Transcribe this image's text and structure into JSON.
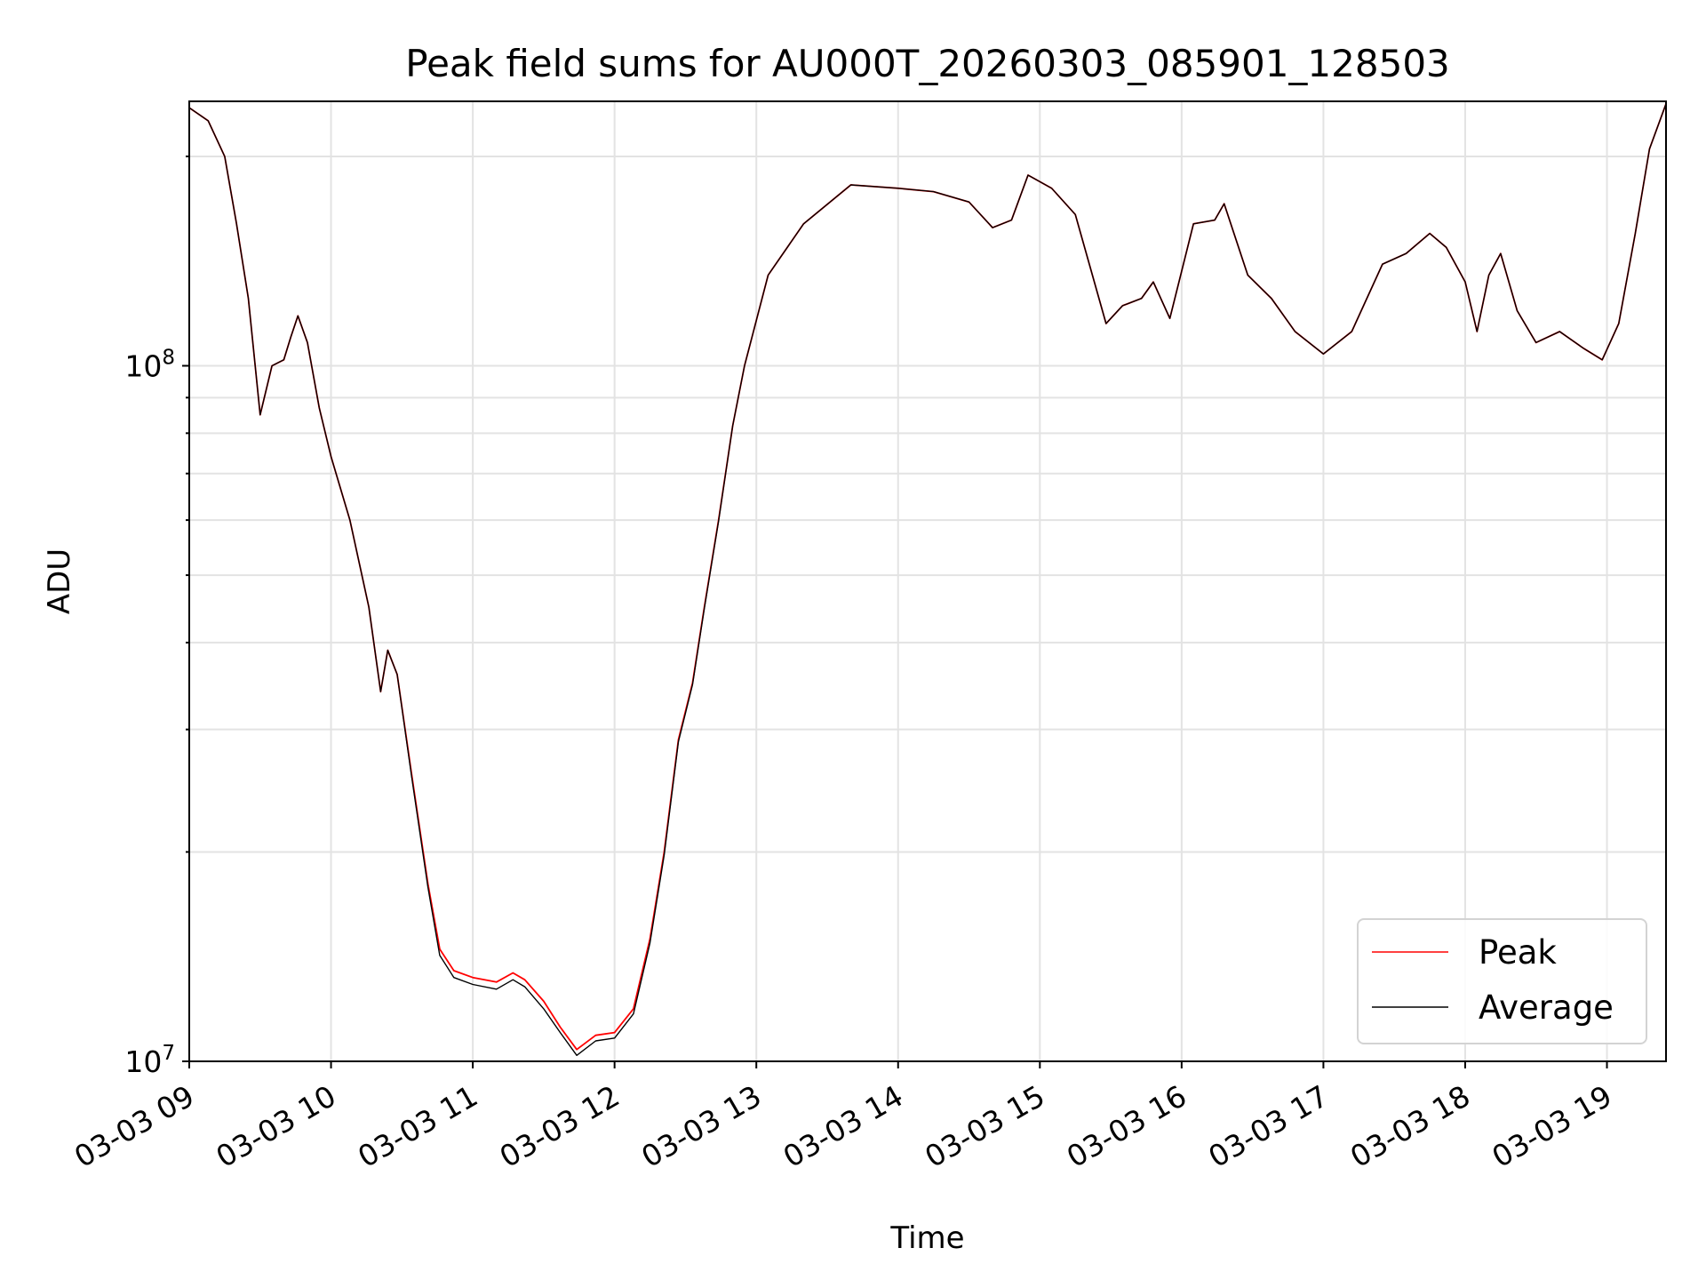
{
  "chart_data": {
    "type": "line",
    "title": "Peak field sums for AU000T_20260303_085901_128503",
    "xlabel": "Time",
    "ylabel": "ADU",
    "yscale": "log",
    "ylim": [
      10000000,
      240000000
    ],
    "xlim": [
      "2026-03-03 09:00",
      "2026-03-03 19:25"
    ],
    "grid": true,
    "legend": {
      "placement": "bottom-right"
    },
    "x_ticks": [
      {
        "time": "2026-03-03 09:00",
        "label": "03-03 09"
      },
      {
        "time": "2026-03-03 10:00",
        "label": "03-03 10"
      },
      {
        "time": "2026-03-03 11:00",
        "label": "03-03 11"
      },
      {
        "time": "2026-03-03 12:00",
        "label": "03-03 12"
      },
      {
        "time": "2026-03-03 13:00",
        "label": "03-03 13"
      },
      {
        "time": "2026-03-03 14:00",
        "label": "03-03 14"
      },
      {
        "time": "2026-03-03 15:00",
        "label": "03-03 15"
      },
      {
        "time": "2026-03-03 16:00",
        "label": "03-03 16"
      },
      {
        "time": "2026-03-03 17:00",
        "label": "03-03 17"
      },
      {
        "time": "2026-03-03 18:00",
        "label": "03-03 18"
      },
      {
        "time": "2026-03-03 19:00",
        "label": "03-03 19"
      }
    ],
    "y_major_ticks": [
      {
        "value": 10000000,
        "base": "10",
        "exp": "7"
      },
      {
        "value": 100000000,
        "base": "10",
        "exp": "8"
      }
    ],
    "y_minor_ticks": [
      20000000,
      30000000,
      40000000,
      50000000,
      60000000,
      70000000,
      80000000,
      90000000,
      200000000
    ],
    "series": [
      {
        "name": "Peak",
        "color": "#ff0000",
        "points": [
          [
            "2026-03-03 09:00",
            235000000
          ],
          [
            "2026-03-03 09:08",
            225000000
          ],
          [
            "2026-03-03 09:15",
            200000000
          ],
          [
            "2026-03-03 09:20",
            160000000
          ],
          [
            "2026-03-03 09:25",
            125000000
          ],
          [
            "2026-03-03 09:30",
            85000000
          ],
          [
            "2026-03-03 09:35",
            100000000
          ],
          [
            "2026-03-03 09:40",
            102000000
          ],
          [
            "2026-03-03 09:43",
            110000000
          ],
          [
            "2026-03-03 09:46",
            118000000
          ],
          [
            "2026-03-03 09:50",
            108000000
          ],
          [
            "2026-03-03 09:55",
            87000000
          ],
          [
            "2026-03-03 10:00",
            74000000
          ],
          [
            "2026-03-03 10:08",
            60000000
          ],
          [
            "2026-03-03 10:16",
            45000000
          ],
          [
            "2026-03-03 10:21",
            34000000
          ],
          [
            "2026-03-03 10:24",
            39000000
          ],
          [
            "2026-03-03 10:28",
            36000000
          ],
          [
            "2026-03-03 10:34",
            26000000
          ],
          [
            "2026-03-03 10:41",
            18000000
          ],
          [
            "2026-03-03 10:46",
            14500000
          ],
          [
            "2026-03-03 10:52",
            13500000
          ],
          [
            "2026-03-03 11:00",
            13200000
          ],
          [
            "2026-03-03 11:10",
            13000000
          ],
          [
            "2026-03-03 11:17",
            13400000
          ],
          [
            "2026-03-03 11:22",
            13100000
          ],
          [
            "2026-03-03 11:30",
            12200000
          ],
          [
            "2026-03-03 11:37",
            11200000
          ],
          [
            "2026-03-03 11:44",
            10400000
          ],
          [
            "2026-03-03 11:52",
            10900000
          ],
          [
            "2026-03-03 12:00",
            11000000
          ],
          [
            "2026-03-03 12:08",
            11900000
          ],
          [
            "2026-03-03 12:15",
            15000000
          ],
          [
            "2026-03-03 12:21",
            20000000
          ],
          [
            "2026-03-03 12:27",
            29000000
          ],
          [
            "2026-03-03 12:33",
            35000000
          ],
          [
            "2026-03-03 12:38",
            45000000
          ],
          [
            "2026-03-03 12:44",
            60000000
          ],
          [
            "2026-03-03 12:50",
            82000000
          ],
          [
            "2026-03-03 12:55",
            100000000
          ],
          [
            "2026-03-03 13:05",
            135000000
          ],
          [
            "2026-03-03 13:20",
            160000000
          ],
          [
            "2026-03-03 13:40",
            182000000
          ],
          [
            "2026-03-03 14:00",
            180000000
          ],
          [
            "2026-03-03 14:15",
            178000000
          ],
          [
            "2026-03-03 14:30",
            172000000
          ],
          [
            "2026-03-03 14:40",
            158000000
          ],
          [
            "2026-03-03 14:48",
            162000000
          ],
          [
            "2026-03-03 14:55",
            188000000
          ],
          [
            "2026-03-03 15:05",
            180000000
          ],
          [
            "2026-03-03 15:15",
            165000000
          ],
          [
            "2026-03-03 15:28",
            115000000
          ],
          [
            "2026-03-03 15:35",
            122000000
          ],
          [
            "2026-03-03 15:43",
            125000000
          ],
          [
            "2026-03-03 15:48",
            132000000
          ],
          [
            "2026-03-03 15:55",
            117000000
          ],
          [
            "2026-03-03 16:05",
            160000000
          ],
          [
            "2026-03-03 16:14",
            162000000
          ],
          [
            "2026-03-03 16:18",
            171000000
          ],
          [
            "2026-03-03 16:28",
            135000000
          ],
          [
            "2026-03-03 16:38",
            125000000
          ],
          [
            "2026-03-03 16:48",
            112000000
          ],
          [
            "2026-03-03 17:00",
            104000000
          ],
          [
            "2026-03-03 17:12",
            112000000
          ],
          [
            "2026-03-03 17:25",
            140000000
          ],
          [
            "2026-03-03 17:35",
            145000000
          ],
          [
            "2026-03-03 17:45",
            155000000
          ],
          [
            "2026-03-03 17:52",
            148000000
          ],
          [
            "2026-03-03 18:00",
            132000000
          ],
          [
            "2026-03-03 18:05",
            112000000
          ],
          [
            "2026-03-03 18:10",
            135000000
          ],
          [
            "2026-03-03 18:15",
            145000000
          ],
          [
            "2026-03-03 18:22",
            120000000
          ],
          [
            "2026-03-03 18:30",
            108000000
          ],
          [
            "2026-03-03 18:40",
            112000000
          ],
          [
            "2026-03-03 18:50",
            106000000
          ],
          [
            "2026-03-03 18:58",
            102000000
          ],
          [
            "2026-03-03 19:05",
            115000000
          ],
          [
            "2026-03-03 19:12",
            155000000
          ],
          [
            "2026-03-03 19:18",
            205000000
          ],
          [
            "2026-03-03 19:25",
            238000000
          ]
        ]
      },
      {
        "name": "Average",
        "color": "#000000",
        "points": [
          [
            "2026-03-03 09:00",
            235000000
          ],
          [
            "2026-03-03 09:08",
            225000000
          ],
          [
            "2026-03-03 09:15",
            200000000
          ],
          [
            "2026-03-03 09:20",
            160000000
          ],
          [
            "2026-03-03 09:25",
            125000000
          ],
          [
            "2026-03-03 09:30",
            85000000
          ],
          [
            "2026-03-03 09:35",
            100000000
          ],
          [
            "2026-03-03 09:40",
            102000000
          ],
          [
            "2026-03-03 09:43",
            110000000
          ],
          [
            "2026-03-03 09:46",
            118000000
          ],
          [
            "2026-03-03 09:50",
            108000000
          ],
          [
            "2026-03-03 09:55",
            87000000
          ],
          [
            "2026-03-03 10:00",
            74000000
          ],
          [
            "2026-03-03 10:08",
            60000000
          ],
          [
            "2026-03-03 10:16",
            45000000
          ],
          [
            "2026-03-03 10:21",
            34000000
          ],
          [
            "2026-03-03 10:24",
            39000000
          ],
          [
            "2026-03-03 10:28",
            36000000
          ],
          [
            "2026-03-03 10:34",
            25800000
          ],
          [
            "2026-03-03 10:41",
            17800000
          ],
          [
            "2026-03-03 10:46",
            14200000
          ],
          [
            "2026-03-03 10:52",
            13200000
          ],
          [
            "2026-03-03 11:00",
            12900000
          ],
          [
            "2026-03-03 11:10",
            12700000
          ],
          [
            "2026-03-03 11:17",
            13100000
          ],
          [
            "2026-03-03 11:22",
            12800000
          ],
          [
            "2026-03-03 11:30",
            11900000
          ],
          [
            "2026-03-03 11:37",
            11000000
          ],
          [
            "2026-03-03 11:44",
            10200000
          ],
          [
            "2026-03-03 11:52",
            10700000
          ],
          [
            "2026-03-03 12:00",
            10800000
          ],
          [
            "2026-03-03 12:08",
            11700000
          ],
          [
            "2026-03-03 12:15",
            14800000
          ],
          [
            "2026-03-03 12:21",
            19800000
          ],
          [
            "2026-03-03 12:27",
            28800000
          ],
          [
            "2026-03-03 12:33",
            34800000
          ],
          [
            "2026-03-03 12:38",
            44800000
          ],
          [
            "2026-03-03 12:44",
            59800000
          ],
          [
            "2026-03-03 12:50",
            82000000
          ],
          [
            "2026-03-03 12:55",
            100000000
          ],
          [
            "2026-03-03 13:05",
            135000000
          ],
          [
            "2026-03-03 13:20",
            160000000
          ],
          [
            "2026-03-03 13:40",
            182000000
          ],
          [
            "2026-03-03 14:00",
            180000000
          ],
          [
            "2026-03-03 14:15",
            178000000
          ],
          [
            "2026-03-03 14:30",
            172000000
          ],
          [
            "2026-03-03 14:40",
            158000000
          ],
          [
            "2026-03-03 14:48",
            162000000
          ],
          [
            "2026-03-03 14:55",
            188000000
          ],
          [
            "2026-03-03 15:05",
            180000000
          ],
          [
            "2026-03-03 15:15",
            165000000
          ],
          [
            "2026-03-03 15:28",
            115000000
          ],
          [
            "2026-03-03 15:35",
            122000000
          ],
          [
            "2026-03-03 15:43",
            125000000
          ],
          [
            "2026-03-03 15:48",
            132000000
          ],
          [
            "2026-03-03 15:55",
            117000000
          ],
          [
            "2026-03-03 16:05",
            160000000
          ],
          [
            "2026-03-03 16:14",
            162000000
          ],
          [
            "2026-03-03 16:18",
            171000000
          ],
          [
            "2026-03-03 16:28",
            135000000
          ],
          [
            "2026-03-03 16:38",
            125000000
          ],
          [
            "2026-03-03 16:48",
            112000000
          ],
          [
            "2026-03-03 17:00",
            104000000
          ],
          [
            "2026-03-03 17:12",
            112000000
          ],
          [
            "2026-03-03 17:25",
            140000000
          ],
          [
            "2026-03-03 17:35",
            145000000
          ],
          [
            "2026-03-03 17:45",
            155000000
          ],
          [
            "2026-03-03 17:52",
            148000000
          ],
          [
            "2026-03-03 18:00",
            132000000
          ],
          [
            "2026-03-03 18:05",
            112000000
          ],
          [
            "2026-03-03 18:10",
            135000000
          ],
          [
            "2026-03-03 18:15",
            145000000
          ],
          [
            "2026-03-03 18:22",
            120000000
          ],
          [
            "2026-03-03 18:30",
            108000000
          ],
          [
            "2026-03-03 18:40",
            112000000
          ],
          [
            "2026-03-03 18:50",
            106000000
          ],
          [
            "2026-03-03 18:58",
            102000000
          ],
          [
            "2026-03-03 19:05",
            115000000
          ],
          [
            "2026-03-03 19:12",
            155000000
          ],
          [
            "2026-03-03 19:18",
            205000000
          ],
          [
            "2026-03-03 19:25",
            238000000
          ]
        ]
      }
    ]
  },
  "colors": {
    "background": "#ffffff",
    "grid": "#e3e3e3",
    "axis": "#000000",
    "legend_border": "#d3d3d3"
  }
}
